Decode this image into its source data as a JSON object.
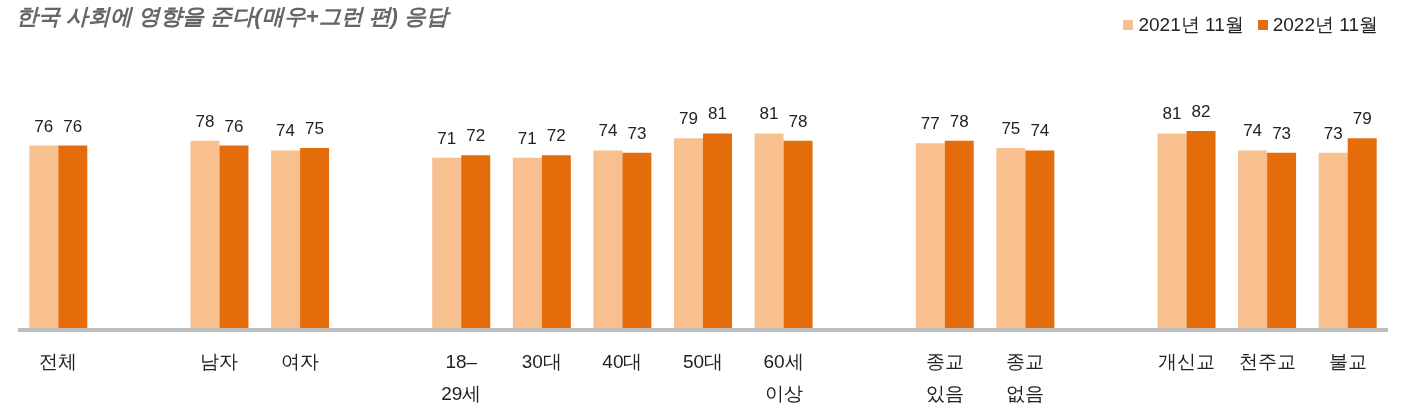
{
  "chart_data": {
    "type": "bar",
    "title": "한국 사회에 영향을 준다(매우+그런 편) 응답",
    "categories": [
      "전체",
      null,
      "남자",
      "여자",
      null,
      "18–\n29세",
      "30대",
      "40대",
      "50대",
      "60세\n이상",
      null,
      "종교\n있음",
      "종교\n없음",
      null,
      "개신교",
      "천주교",
      "불교"
    ],
    "series": [
      {
        "name": "2021년 11월",
        "color": "#f8c08f",
        "values": [
          76,
          null,
          78,
          74,
          null,
          71,
          71,
          74,
          79,
          81,
          null,
          77,
          75,
          null,
          81,
          74,
          73
        ]
      },
      {
        "name": "2022년 11월",
        "color": "#e46c0a",
        "values": [
          76,
          null,
          76,
          75,
          null,
          72,
          72,
          73,
          81,
          78,
          null,
          78,
          74,
          null,
          82,
          73,
          79
        ]
      }
    ],
    "data_labels": true,
    "legend": "top right"
  }
}
